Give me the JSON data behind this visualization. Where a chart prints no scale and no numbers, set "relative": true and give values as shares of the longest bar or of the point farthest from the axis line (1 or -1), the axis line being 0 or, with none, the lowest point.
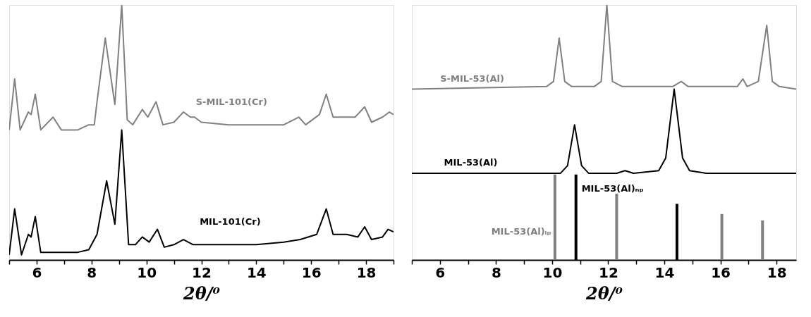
{
  "chart_data": [
    {
      "type": "line",
      "relative": true,
      "xlabel": "2θ/⁰",
      "xlim": [
        5,
        19
      ],
      "grid": false,
      "legend": false,
      "tick_labels": "x",
      "xticks": [
        {
          "value": 5,
          "label": null
        },
        6,
        {
          "value": 7,
          "label": null
        },
        8,
        {
          "value": 9,
          "label": null
        },
        10,
        {
          "value": 11,
          "label": null
        },
        12,
        {
          "value": 13,
          "label": null
        },
        14,
        {
          "value": 15,
          "label": null
        },
        16,
        {
          "value": 17,
          "label": null
        },
        18,
        {
          "value": 19,
          "label": null
        }
      ],
      "series": [
        {
          "name": "S-MIL-101(Cr)",
          "color": "#808080",
          "x": [
            5.0,
            5.2,
            5.4,
            5.7,
            5.8,
            5.95,
            6.15,
            6.6,
            6.9,
            7.5,
            7.9,
            8.1,
            8.2,
            8.5,
            8.7,
            8.85,
            9.1,
            9.3,
            9.5,
            9.85,
            10.05,
            10.35,
            10.6,
            11.0,
            11.35,
            11.6,
            11.75,
            12.0,
            13.0,
            14.0,
            15.0,
            15.55,
            15.8,
            16.3,
            16.55,
            16.8,
            17.3,
            17.6,
            17.95,
            18.2,
            18.6,
            18.85,
            19.0
          ],
          "values": [
            0.51,
            0.71,
            0.51,
            0.58,
            0.57,
            0.65,
            0.51,
            0.56,
            0.51,
            0.51,
            0.53,
            0.53,
            0.62,
            0.87,
            0.72,
            0.61,
            1.0,
            0.55,
            0.53,
            0.59,
            0.56,
            0.62,
            0.53,
            0.54,
            0.58,
            0.56,
            0.56,
            0.54,
            0.53,
            0.53,
            0.53,
            0.56,
            0.53,
            0.57,
            0.65,
            0.56,
            0.56,
            0.56,
            0.6,
            0.54,
            0.56,
            0.58,
            0.57
          ]
        },
        {
          "name": "MIL-101(Cr)",
          "color": "#000000",
          "x": [
            5.0,
            5.2,
            5.45,
            5.7,
            5.8,
            5.95,
            6.15,
            7.0,
            7.5,
            7.9,
            8.2,
            8.55,
            8.85,
            9.1,
            9.35,
            9.6,
            9.85,
            10.1,
            10.4,
            10.65,
            11.0,
            11.35,
            11.7,
            12.0,
            13.0,
            14.0,
            15.0,
            15.6,
            16.2,
            16.55,
            16.8,
            17.3,
            17.7,
            17.95,
            18.2,
            18.6,
            18.8,
            19.0
          ],
          "values": [
            0.02,
            0.2,
            0.02,
            0.1,
            0.09,
            0.17,
            0.03,
            0.03,
            0.03,
            0.04,
            0.1,
            0.31,
            0.14,
            0.51,
            0.06,
            0.06,
            0.09,
            0.07,
            0.12,
            0.05,
            0.06,
            0.08,
            0.06,
            0.06,
            0.06,
            0.06,
            0.07,
            0.08,
            0.1,
            0.2,
            0.1,
            0.1,
            0.09,
            0.13,
            0.08,
            0.09,
            0.12,
            0.11
          ]
        }
      ]
    },
    {
      "type": "line",
      "relative": true,
      "xlabel": "2θ/⁰",
      "xlim": [
        5,
        18.7
      ],
      "grid": false,
      "legend": false,
      "tick_labels": "x",
      "xticks": [
        {
          "value": 5,
          "label": null
        },
        6,
        {
          "value": 7,
          "label": null
        },
        8,
        {
          "value": 9,
          "label": null
        },
        10,
        {
          "value": 11,
          "label": null
        },
        12,
        {
          "value": 13,
          "label": null
        },
        14,
        {
          "value": 15,
          "label": null
        },
        16,
        {
          "value": 17,
          "label": null
        },
        18
      ],
      "series": [
        {
          "name": "S-MIL-53(Al)",
          "color": "#808080",
          "x": [
            5.0,
            9.8,
            10.05,
            10.25,
            10.45,
            10.7,
            11.5,
            11.75,
            11.95,
            12.15,
            12.5,
            14.3,
            14.6,
            14.85,
            16.6,
            16.8,
            16.95,
            17.35,
            17.65,
            17.85,
            18.1,
            18.7
          ],
          "values": [
            0.67,
            0.68,
            0.7,
            0.87,
            0.7,
            0.68,
            0.68,
            0.7,
            1.0,
            0.7,
            0.68,
            0.68,
            0.7,
            0.68,
            0.68,
            0.71,
            0.68,
            0.7,
            0.92,
            0.7,
            0.68,
            0.67
          ]
        },
        {
          "name": "MIL-53(Al)",
          "color": "#000000",
          "x": [
            5.0,
            10.3,
            10.55,
            10.8,
            11.05,
            11.3,
            12.3,
            12.6,
            12.9,
            13.8,
            14.05,
            14.35,
            14.65,
            14.9,
            15.5,
            18.7
          ],
          "values": [
            0.34,
            0.34,
            0.37,
            0.53,
            0.37,
            0.34,
            0.34,
            0.35,
            0.34,
            0.35,
            0.4,
            0.67,
            0.4,
            0.35,
            0.34,
            0.34
          ]
        },
        {
          "name": "MIL-53(Al)ₙₚ",
          "type": "bar",
          "color": "#000000",
          "x": [
            10.85,
            14.45
          ],
          "values": [
            0.335,
            0.22
          ]
        },
        {
          "name": "MIL-53(Al)ₗₚ",
          "type": "bar",
          "color": "#808080",
          "x": [
            10.1,
            12.3,
            16.05,
            17.5
          ],
          "values": [
            0.335,
            0.26,
            0.18,
            0.155
          ]
        }
      ]
    }
  ]
}
